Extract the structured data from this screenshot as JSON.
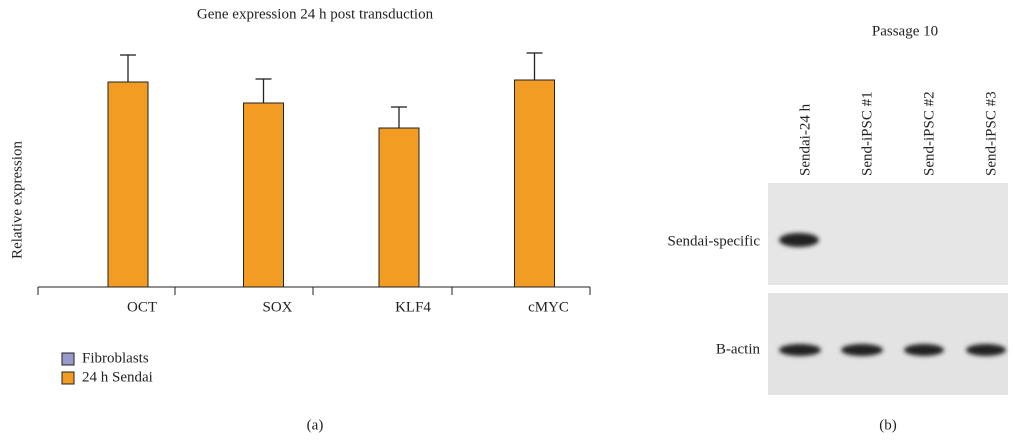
{
  "chart_data": {
    "type": "bar",
    "title": "Gene expression 24 h post transduction",
    "ylabel": "Relative expression",
    "categories": [
      "OCT",
      "SOX",
      "KLF4",
      "cMYC"
    ],
    "series": [
      {
        "name": "Fibroblasts",
        "color": "#9999cc",
        "values": [
          0,
          0,
          0,
          0
        ]
      },
      {
        "name": "24 h Sendai",
        "color": "#f39c24",
        "values": [
          205,
          184,
          159,
          207
        ],
        "errors": [
          27,
          24,
          21,
          27
        ]
      }
    ],
    "ylim": [
      0,
      240
    ],
    "legend": "bottom-left",
    "panel": "(a)"
  },
  "gel": {
    "title": "Passage 10",
    "panel": "(b)",
    "lanes": [
      "Sendai-24 h",
      "Send-iPSC #1",
      "Send-iPSC #2",
      "Send-iPSC #3"
    ],
    "rows": [
      "Sendai-specific",
      "B-actin"
    ]
  }
}
